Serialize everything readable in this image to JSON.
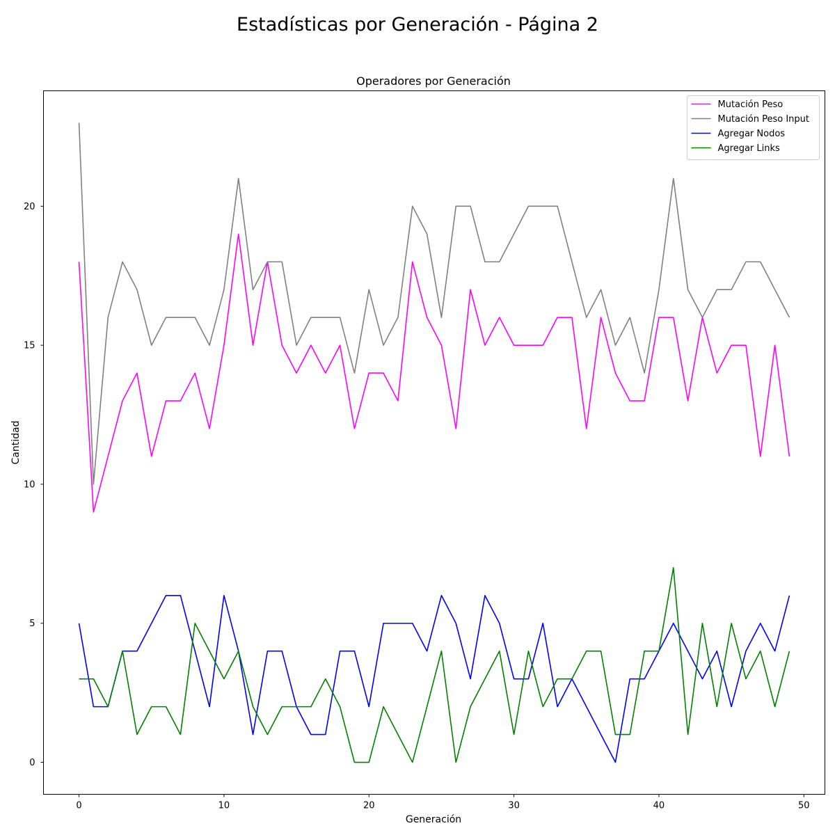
{
  "figure_title": "Estadísticas por Generación - Página 2",
  "chart_data": {
    "type": "line",
    "title": "Operadores por Generación",
    "xlabel": "Generación",
    "ylabel": "Cantidad",
    "xlim": [
      -2.45,
      51.45
    ],
    "ylim": [
      -1.15,
      24.15
    ],
    "xticks": [
      0,
      10,
      20,
      30,
      40,
      50
    ],
    "yticks": [
      0,
      5,
      10,
      15,
      20
    ],
    "grid": false,
    "legend_position": "top-right",
    "x": [
      0,
      1,
      2,
      3,
      4,
      5,
      6,
      7,
      8,
      9,
      10,
      11,
      12,
      13,
      14,
      15,
      16,
      17,
      18,
      19,
      20,
      21,
      22,
      23,
      24,
      25,
      26,
      27,
      28,
      29,
      30,
      31,
      32,
      33,
      34,
      35,
      36,
      37,
      38,
      39,
      40,
      41,
      42,
      43,
      44,
      45,
      46,
      47,
      48,
      49
    ],
    "series": [
      {
        "name": "Mutación Peso",
        "color": "#ff00ff",
        "values": [
          18,
          9,
          11,
          13,
          14,
          11,
          13,
          13,
          14,
          12,
          15,
          19,
          15,
          18,
          15,
          14,
          15,
          14,
          15,
          12,
          14,
          14,
          13,
          18,
          16,
          15,
          12,
          17,
          15,
          16,
          15,
          15,
          15,
          16,
          16,
          12,
          16,
          14,
          13,
          13,
          16,
          16,
          13,
          16,
          14,
          15,
          15,
          11,
          15,
          11
        ]
      },
      {
        "name": "Mutación Peso Input",
        "color": "#808080",
        "values": [
          23,
          10,
          16,
          18,
          17,
          15,
          16,
          16,
          16,
          15,
          17,
          21,
          17,
          18,
          18,
          15,
          16,
          16,
          16,
          14,
          17,
          15,
          16,
          20,
          19,
          16,
          20,
          20,
          18,
          18,
          19,
          20,
          20,
          20,
          18,
          16,
          17,
          15,
          16,
          14,
          17,
          21,
          17,
          16,
          17,
          17,
          18,
          18,
          17,
          16
        ]
      },
      {
        "name": "Agregar Nodos",
        "color": "#0000ff",
        "values": [
          5,
          2,
          2,
          4,
          4,
          5,
          6,
          6,
          4,
          2,
          6,
          4,
          1,
          4,
          4,
          2,
          1,
          1,
          4,
          4,
          2,
          5,
          5,
          5,
          4,
          6,
          5,
          3,
          6,
          5,
          3,
          3,
          5,
          2,
          3,
          2,
          1,
          0,
          3,
          3,
          4,
          5,
          4,
          3,
          4,
          2,
          4,
          5,
          4,
          6
        ]
      },
      {
        "name": "Agregar Links",
        "color": "#008000",
        "values": [
          3,
          3,
          2,
          4,
          1,
          2,
          2,
          1,
          5,
          4,
          3,
          4,
          2,
          1,
          2,
          2,
          2,
          3,
          2,
          0,
          0,
          2,
          1,
          0,
          2,
          4,
          0,
          2,
          3,
          4,
          1,
          4,
          2,
          3,
          3,
          4,
          4,
          1,
          1,
          4,
          4,
          7,
          1,
          5,
          2,
          5,
          3,
          4,
          2,
          4
        ]
      }
    ]
  }
}
